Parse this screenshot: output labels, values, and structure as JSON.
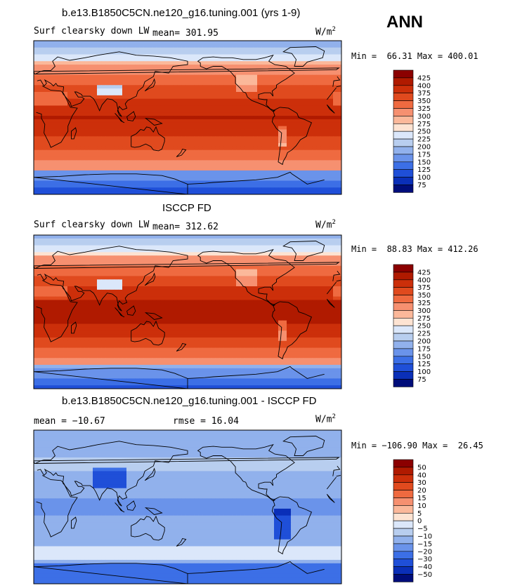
{
  "season": "ANN",
  "chart_data": [
    {
      "type": "heatmap",
      "title": "b.e13.B1850C5CN.ne120_g16.tuning.001 (yrs 1-9)",
      "variable": "Surf clearsky down LW",
      "mean_label": "mean= 301.95",
      "units": "W/m",
      "units_sup": "2",
      "stats": "Min =  66.31 Max = 400.01",
      "colorbar": {
        "levels": [
          "425",
          "400",
          "375",
          "350",
          "325",
          "300",
          "275",
          "250",
          "225",
          "200",
          "175",
          "150",
          "125",
          "100",
          "75"
        ],
        "colors": [
          "#8b0000",
          "#b01a00",
          "#cc2f0a",
          "#e04a1e",
          "#ef6a40",
          "#f69070",
          "#fbb89a",
          "#fde3d2",
          "#dbe7fa",
          "#b8ceef",
          "#91b1ec",
          "#6a93ea",
          "#3c6fe6",
          "#1f4fd8",
          "#0a2fb8",
          "#000d7a"
        ]
      },
      "map": "model"
    },
    {
      "type": "heatmap",
      "title": "ISCCP FD",
      "variable": "Surf clearsky down LW",
      "mean_label": "mean= 312.62",
      "units": "W/m",
      "units_sup": "2",
      "stats": "Min =  88.83 Max = 412.26",
      "colorbar": {
        "levels": [
          "425",
          "400",
          "375",
          "350",
          "325",
          "300",
          "275",
          "250",
          "225",
          "200",
          "175",
          "150",
          "125",
          "100",
          "75"
        ],
        "colors": [
          "#8b0000",
          "#b01a00",
          "#cc2f0a",
          "#e04a1e",
          "#ef6a40",
          "#f69070",
          "#fbb89a",
          "#fde3d2",
          "#dbe7fa",
          "#b8ceef",
          "#91b1ec",
          "#6a93ea",
          "#3c6fe6",
          "#1f4fd8",
          "#0a2fb8",
          "#000d7a"
        ]
      },
      "map": "obs"
    },
    {
      "type": "heatmap",
      "title": "b.e13.B1850C5CN.ne120_g16.tuning.001 - ISCCP FD",
      "variable": "",
      "mean_label": "mean = −10.67",
      "rmse_label": "rmse =  16.04",
      "units": "W/m",
      "units_sup": "2",
      "stats": "Min = −106.90 Max =  26.45",
      "colorbar": {
        "levels": [
          "50",
          "40",
          "30",
          "20",
          "15",
          "10",
          "5",
          "0",
          "−5",
          "−10",
          "−15",
          "−20",
          "−30",
          "−40",
          "−50"
        ],
        "colors": [
          "#8b0000",
          "#b01a00",
          "#cc2f0a",
          "#e04a1e",
          "#ef6a40",
          "#f69070",
          "#fbb89a",
          "#fde3d2",
          "#dbe7fa",
          "#b8ceef",
          "#91b1ec",
          "#6a93ea",
          "#3c6fe6",
          "#1f4fd8",
          "#0a2fb8",
          "#000d7a"
        ]
      },
      "map": "diff"
    }
  ]
}
